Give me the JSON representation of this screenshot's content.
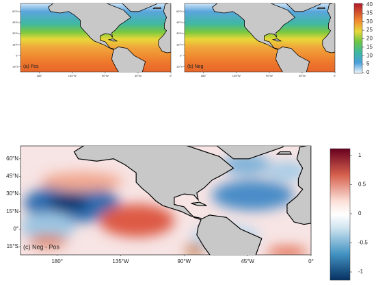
{
  "panels": [
    {
      "label": "(a) Pos"
    },
    {
      "label": "(b) Neg"
    },
    {
      "label": "(c) Neg - Pos"
    }
  ],
  "map_axes": {
    "lon_labels": [
      "180°",
      "135°W",
      "90°W",
      "45°W",
      "0°"
    ],
    "lat_labels": [
      "60°N",
      "45°N",
      "30°N",
      "15°N",
      "0°",
      "15°S"
    ]
  },
  "colorbars": [
    {
      "ticks": [
        40,
        35,
        30,
        25,
        20,
        15,
        10,
        5,
        0
      ]
    },
    {
      "ticks": [
        1,
        0.5,
        0,
        -0.5,
        -1
      ]
    }
  ]
}
